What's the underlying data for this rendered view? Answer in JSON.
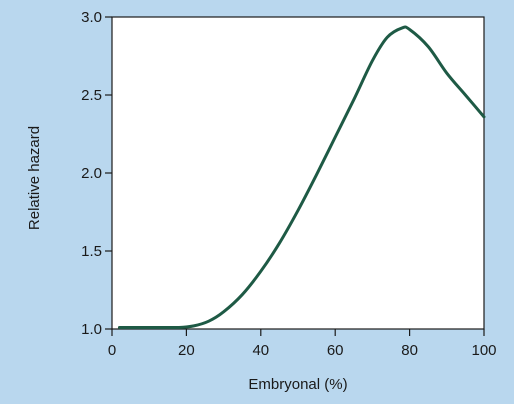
{
  "chart_data": {
    "type": "line",
    "title": "",
    "xlabel": "Embryonal (%)",
    "ylabel": "Relative hazard",
    "xlim": [
      0,
      100
    ],
    "ylim": [
      1.0,
      3.0
    ],
    "x_ticks": [
      0,
      20,
      40,
      60,
      80,
      100
    ],
    "x_tick_labels": [
      "0",
      "20",
      "40",
      "60",
      "80",
      "100"
    ],
    "y_ticks": [
      1.0,
      1.5,
      2.0,
      2.5,
      3.0
    ],
    "y_tick_labels": [
      "1.0",
      "1.5",
      "2.0",
      "2.5",
      "3.0"
    ],
    "grid": false,
    "legend": "none",
    "series": [
      {
        "color": "#1e5a45",
        "x": [
          2,
          10,
          18,
          22,
          26,
          30,
          35,
          40,
          45,
          50,
          55,
          60,
          65,
          70,
          74,
          78,
          80,
          85,
          90,
          95,
          100
        ],
        "y": [
          1.01,
          1.01,
          1.01,
          1.02,
          1.05,
          1.11,
          1.22,
          1.37,
          1.55,
          1.76,
          1.99,
          2.23,
          2.47,
          2.72,
          2.87,
          2.93,
          2.92,
          2.81,
          2.64,
          2.5,
          2.36
        ]
      }
    ]
  },
  "colors": {
    "page_background": "#b9d7ee",
    "plot_background": "#ffffff",
    "axis": "#1a1a1a"
  }
}
